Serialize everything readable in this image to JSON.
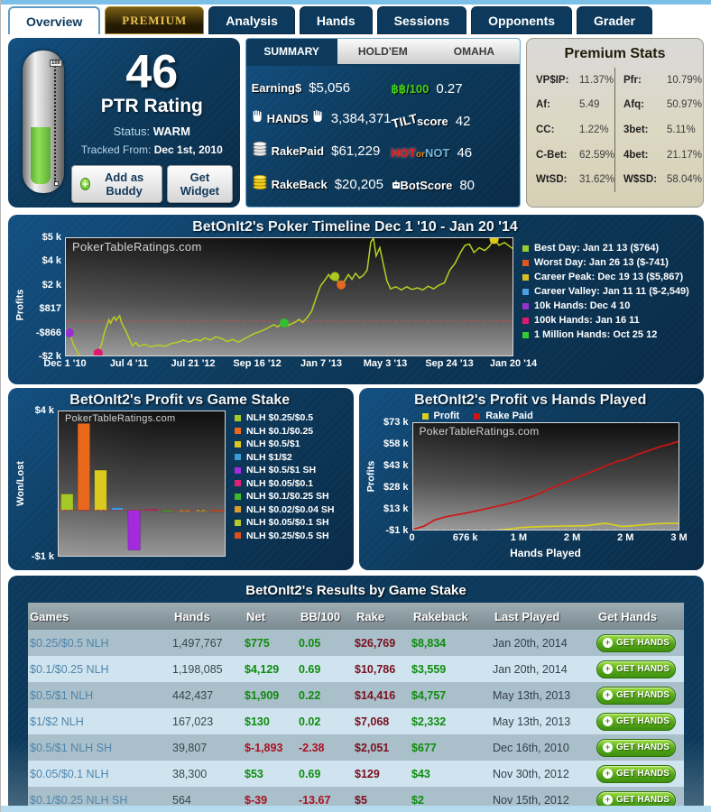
{
  "watermark": "PokerTableRatings.com",
  "colors": {
    "panel_navy": "#0d3a5c",
    "accent_lightblue": "#7cc0e8",
    "positive_green": "#0e8c0e",
    "negative_red": "#aa1122",
    "rake_red": "#7a0f1f"
  },
  "tabs": [
    {
      "label": "Overview",
      "active": true,
      "premium": false
    },
    {
      "label": "PREMIUM",
      "active": false,
      "premium": true
    },
    {
      "label": "Analysis",
      "active": false,
      "premium": false
    },
    {
      "label": "Hands",
      "active": false,
      "premium": false
    },
    {
      "label": "Sessions",
      "active": false,
      "premium": false
    },
    {
      "label": "Opponents",
      "active": false,
      "premium": false
    },
    {
      "label": "Grader",
      "active": false,
      "premium": false
    }
  ],
  "rating": {
    "value": "46",
    "label": "PTR Rating",
    "status_label": "Status:",
    "status_value": "WARM",
    "tracked_label": "Tracked From:",
    "tracked_value": "Dec 1st, 2010",
    "add_buddy_label": "Add as Buddy",
    "get_widget_label": "Get Widget",
    "thermo_top_label": "100",
    "thermo_fill_pct": 46
  },
  "summary": {
    "tabs": [
      {
        "label": "SUMMARY",
        "active": true
      },
      {
        "label": "HOLD'EM",
        "active": false
      },
      {
        "label": "OMAHA",
        "active": false
      }
    ],
    "left_stats": [
      {
        "id": "earnings",
        "label": "Earning$",
        "value": "$5,056",
        "icon": "none"
      },
      {
        "id": "hands",
        "label": "HANDS",
        "value": "3,384,371",
        "icon": "hands"
      },
      {
        "id": "rakepaid",
        "label": "RakePaid",
        "value": "$61,229",
        "icon": "coins-silver"
      },
      {
        "id": "rakeback",
        "label": "RakeBack",
        "value": "$20,205",
        "icon": "coins-gold"
      }
    ],
    "right_stats": [
      {
        "id": "bb100",
        "label": "฿฿/100",
        "value": "0.27"
      },
      {
        "id": "tiltscore",
        "label_a": "TILT",
        "label_b": "score",
        "value": "42"
      },
      {
        "id": "hotornot",
        "label_hot": "HOT",
        "label_or": "or",
        "label_not": "NOT",
        "value": "46"
      },
      {
        "id": "botscore",
        "label": "BotScore",
        "value": "80"
      }
    ]
  },
  "premium_stats": {
    "title": "Premium Stats",
    "left": [
      [
        "VP$IP:",
        "11.37%"
      ],
      [
        "Af:",
        "5.49"
      ],
      [
        "CC:",
        "1.22%"
      ],
      [
        "C-Bet:",
        "62.59%"
      ],
      [
        "WtSD:",
        "31.62%"
      ]
    ],
    "right": [
      [
        "Pfr:",
        "10.79%"
      ],
      [
        "Afq:",
        "50.97%"
      ],
      [
        "3bet:",
        "5.11%"
      ],
      [
        "4bet:",
        "21.17%"
      ],
      [
        "W$SD:",
        "58.04%"
      ]
    ]
  },
  "chart_data": [
    {
      "id": "timeline",
      "type": "line",
      "title": "BetOnIt2's Poker Timeline Dec 1 '10 - Jan 20 '14",
      "ylabel": "Profits",
      "line_color": "#b8d021",
      "zero_line_color": "#c05050",
      "yticks": [
        {
          "label": "$5 k",
          "v": 5000
        },
        {
          "label": "$4 k",
          "v": 4000
        },
        {
          "label": "$2 k",
          "v": 2000
        },
        {
          "label": "$817",
          "v": 817
        },
        {
          "label": "-$866",
          "v": -866
        },
        {
          "label": "-$2 k",
          "v": -2000
        }
      ],
      "xticks": [
        "Dec 1 '10",
        "Jul 4 '11",
        "Jul 21 '12",
        "Sep 16 '12",
        "Jan 7 '13",
        "May 3 '13",
        "Sep 24 '13",
        "Jan 20 '14"
      ],
      "series": [
        [
          0.0,
          -550
        ],
        [
          0.008,
          -820
        ],
        [
          0.018,
          -1450
        ],
        [
          0.03,
          -1900
        ],
        [
          0.04,
          -2100
        ],
        [
          0.05,
          -2250
        ],
        [
          0.058,
          -2300
        ],
        [
          0.066,
          -1950
        ],
        [
          0.072,
          -1800
        ],
        [
          0.08,
          -1350
        ],
        [
          0.086,
          -800
        ],
        [
          0.092,
          -250
        ],
        [
          0.096,
          100
        ],
        [
          0.1,
          -150
        ],
        [
          0.104,
          150
        ],
        [
          0.108,
          300
        ],
        [
          0.112,
          50
        ],
        [
          0.116,
          250
        ],
        [
          0.12,
          380
        ],
        [
          0.124,
          -80
        ],
        [
          0.128,
          -350
        ],
        [
          0.134,
          -700
        ],
        [
          0.14,
          -1050
        ],
        [
          0.148,
          -1450
        ],
        [
          0.156,
          -1300
        ],
        [
          0.164,
          -1480
        ],
        [
          0.175,
          -1380
        ],
        [
          0.19,
          -1500
        ],
        [
          0.205,
          -1420
        ],
        [
          0.22,
          -1480
        ],
        [
          0.235,
          -1350
        ],
        [
          0.25,
          -1280
        ],
        [
          0.262,
          -1180
        ],
        [
          0.275,
          -1280
        ],
        [
          0.288,
          -1150
        ],
        [
          0.3,
          -1220
        ],
        [
          0.31,
          -1080
        ],
        [
          0.322,
          -1180
        ],
        [
          0.335,
          -1020
        ],
        [
          0.348,
          -1120
        ],
        [
          0.36,
          -1250
        ],
        [
          0.372,
          -1150
        ],
        [
          0.385,
          -1280
        ],
        [
          0.398,
          -1120
        ],
        [
          0.41,
          -980
        ],
        [
          0.422,
          -850
        ],
        [
          0.434,
          -720
        ],
        [
          0.446,
          -550
        ],
        [
          0.456,
          -380
        ],
        [
          0.464,
          -250
        ],
        [
          0.472,
          -400
        ],
        [
          0.48,
          -200
        ],
        [
          0.487,
          -130
        ],
        [
          0.495,
          -320
        ],
        [
          0.503,
          -180
        ],
        [
          0.512,
          -60
        ],
        [
          0.52,
          130
        ],
        [
          0.528,
          -80
        ],
        [
          0.538,
          250
        ],
        [
          0.548,
          700
        ],
        [
          0.558,
          1400
        ],
        [
          0.568,
          2000
        ],
        [
          0.578,
          2500
        ],
        [
          0.586,
          2950
        ],
        [
          0.592,
          2600
        ],
        [
          0.6,
          2780
        ],
        [
          0.607,
          2350
        ],
        [
          0.614,
          2080
        ],
        [
          0.622,
          2450
        ],
        [
          0.63,
          2950
        ],
        [
          0.638,
          2550
        ],
        [
          0.646,
          3050
        ],
        [
          0.655,
          2650
        ],
        [
          0.664,
          2900
        ],
        [
          0.672,
          3350
        ],
        [
          0.68,
          4850
        ],
        [
          0.686,
          5000
        ],
        [
          0.692,
          4250
        ],
        [
          0.7,
          4600
        ],
        [
          0.708,
          3800
        ],
        [
          0.716,
          2400
        ],
        [
          0.724,
          1850
        ],
        [
          0.736,
          1950
        ],
        [
          0.748,
          1800
        ],
        [
          0.76,
          1950
        ],
        [
          0.772,
          1820
        ],
        [
          0.784,
          1900
        ],
        [
          0.796,
          1800
        ],
        [
          0.808,
          1980
        ],
        [
          0.82,
          1850
        ],
        [
          0.832,
          2050
        ],
        [
          0.844,
          2250
        ],
        [
          0.856,
          3300
        ],
        [
          0.868,
          3900
        ],
        [
          0.88,
          4400
        ],
        [
          0.89,
          4700
        ],
        [
          0.9,
          4750
        ],
        [
          0.91,
          4400
        ],
        [
          0.922,
          4600
        ],
        [
          0.934,
          4480
        ],
        [
          0.944,
          4650
        ],
        [
          0.955,
          4950
        ],
        [
          0.966,
          4700
        ],
        [
          0.978,
          4820
        ],
        [
          0.99,
          4650
        ],
        [
          1.0,
          4520
        ]
      ],
      "markers": [
        {
          "x": 0.008,
          "v": -820,
          "color": "#9b30d0"
        },
        {
          "x": 0.058,
          "v": -2300,
          "color": "#4aa0e0"
        },
        {
          "x": 0.072,
          "v": -1800,
          "color": "#e01870"
        },
        {
          "x": 0.487,
          "v": -130,
          "color": "#30c030"
        },
        {
          "x": 0.6,
          "v": 2780,
          "color": "#aac81e"
        },
        {
          "x": 0.614,
          "v": 2080,
          "color": "#e06820"
        },
        {
          "x": 0.955,
          "v": 4950,
          "color": "#e0c818"
        }
      ],
      "legend": [
        {
          "label": "Best Day: Jan 21 13 ($764)",
          "color": "#9acd32"
        },
        {
          "label": "Worst Day: Jan 26 13 ($-741)",
          "color": "#e2571e"
        },
        {
          "label": "Career Peak: Dec 19 13 ($5,867)",
          "color": "#d8c020"
        },
        {
          "label": "Career Valley: Jan 11 11 ($-2,549)",
          "color": "#4d9fe0"
        },
        {
          "label": "10k Hands: Dec 4 10",
          "color": "#9932cc"
        },
        {
          "label": "100k Hands: Jan 16 11",
          "color": "#e3196e"
        },
        {
          "label": "1 Million Hands: Oct 25 12",
          "color": "#32cd32"
        }
      ]
    },
    {
      "id": "stake",
      "type": "bar",
      "title": "BetOnIt2's Profit vs Game Stake",
      "ylabel": "Won/Lost",
      "ytick_top": "$4 k",
      "ytick_bottom": "-$1 k",
      "vmax": 4700,
      "vmin": -2250,
      "zero_line_color": "#c03030",
      "categories": [
        "NLH $0.25/$0.5",
        "NLH $0.1/$0.25",
        "NLH $0.5/$1",
        "NLH $1/$2",
        "NLH $0.5/$1 SH",
        "NLH $0.05/$0.1",
        "NLH $0.1/$0.25 SH",
        "NLH $0.02/$0.04 SH",
        "NLH $0.05/$0.1 SH",
        "NLH $0.25/$0.5 SH"
      ],
      "values": [
        775,
        4129,
        1909,
        130,
        -1893,
        53,
        -39,
        14,
        21,
        -12
      ],
      "colors": [
        "#a6c827",
        "#e8681c",
        "#ddc81e",
        "#3e9ad9",
        "#a42ae0",
        "#e0217a",
        "#3cba28",
        "#dd9c2e",
        "#b4c828",
        "#e0501e"
      ]
    },
    {
      "id": "hands",
      "type": "line",
      "title": "BetOnIt2's Profit vs Hands Played",
      "ylabel": "Profits",
      "xlabel": "Hands Played",
      "yticks": [
        {
          "label": "$73 k",
          "v": 73000
        },
        {
          "label": "$58 k",
          "v": 58000
        },
        {
          "label": "$43 k",
          "v": 43000
        },
        {
          "label": "$28 k",
          "v": 28000
        },
        {
          "label": "$13 k",
          "v": 13000
        },
        {
          "label": "-$1 k",
          "v": -1000
        }
      ],
      "xticks": [
        "0",
        "676 k",
        "1 M",
        "2 M",
        "2 M",
        "3 M"
      ],
      "series": [
        {
          "name": "Profit",
          "color": "#d8d020",
          "points": [
            [
              0,
              -200
            ],
            [
              0.05,
              -450
            ],
            [
              0.1,
              -650
            ],
            [
              0.15,
              -800
            ],
            [
              0.2,
              -850
            ],
            [
              0.25,
              -650
            ],
            [
              0.3,
              -350
            ],
            [
              0.35,
              400
            ],
            [
              0.4,
              1600
            ],
            [
              0.45,
              2100
            ],
            [
              0.5,
              2400
            ],
            [
              0.55,
              2600
            ],
            [
              0.6,
              2750
            ],
            [
              0.65,
              2950
            ],
            [
              0.7,
              4200
            ],
            [
              0.72,
              4500
            ],
            [
              0.75,
              3500
            ],
            [
              0.78,
              2400
            ],
            [
              0.82,
              2750
            ],
            [
              0.86,
              3500
            ],
            [
              0.9,
              4200
            ],
            [
              0.95,
              4450
            ],
            [
              1.0,
              4550
            ]
          ]
        },
        {
          "name": "Rake Paid",
          "color": "#d01414",
          "points": [
            [
              0,
              300
            ],
            [
              0.04,
              2600
            ],
            [
              0.08,
              6800
            ],
            [
              0.12,
              8900
            ],
            [
              0.16,
              10300
            ],
            [
              0.2,
              11600
            ],
            [
              0.25,
              13600
            ],
            [
              0.3,
              15600
            ],
            [
              0.35,
              17700
            ],
            [
              0.4,
              20100
            ],
            [
              0.45,
              23200
            ],
            [
              0.48,
              25600
            ],
            [
              0.52,
              28700
            ],
            [
              0.56,
              31700
            ],
            [
              0.6,
              34700
            ],
            [
              0.64,
              37700
            ],
            [
              0.68,
              40700
            ],
            [
              0.72,
              43700
            ],
            [
              0.76,
              46600
            ],
            [
              0.8,
              48600
            ],
            [
              0.84,
              51600
            ],
            [
              0.88,
              54100
            ],
            [
              0.92,
              56600
            ],
            [
              0.96,
              58700
            ],
            [
              1.0,
              60900
            ]
          ]
        }
      ]
    }
  ],
  "results_table": {
    "title": "BetOnIt2's Results by Game Stake",
    "columns": [
      "Games",
      "Hands",
      "Net",
      "BB/100",
      "Rake",
      "Rakeback",
      "Last Played",
      "Get Hands"
    ],
    "button_label": "GET HANDS",
    "rows": [
      {
        "game": "$0.25/$0.5 NLH",
        "hands": "1,497,767",
        "net": "$775",
        "bb100": "0.05",
        "rake": "$26,769",
        "rakeback": "$8,834",
        "last_played": "Jan 20th, 2014"
      },
      {
        "game": "$0.1/$0.25 NLH",
        "hands": "1,198,085",
        "net": "$4,129",
        "bb100": "0.69",
        "rake": "$10,786",
        "rakeback": "$3,559",
        "last_played": "Jan 20th, 2014"
      },
      {
        "game": "$0.5/$1 NLH",
        "hands": "442,437",
        "net": "$1,909",
        "bb100": "0.22",
        "rake": "$14,416",
        "rakeback": "$4,757",
        "last_played": "May 13th, 2013"
      },
      {
        "game": "$1/$2 NLH",
        "hands": "167,023",
        "net": "$130",
        "bb100": "0.02",
        "rake": "$7,068",
        "rakeback": "$2,332",
        "last_played": "May 13th, 2013"
      },
      {
        "game": "$0.5/$1 NLH SH",
        "hands": "39,807",
        "net": "$-1,893",
        "bb100": "-2.38",
        "rake": "$2,051",
        "rakeback": "$677",
        "last_played": "Dec 16th, 2010"
      },
      {
        "game": "$0.05/$0.1 NLH",
        "hands": "38,300",
        "net": "$53",
        "bb100": "0.69",
        "rake": "$129",
        "rakeback": "$43",
        "last_played": "Nov 30th, 2012"
      },
      {
        "game": "$0.1/$0.25 NLH SH",
        "hands": "564",
        "net": "$-39",
        "bb100": "-13.67",
        "rake": "$5",
        "rakeback": "$2",
        "last_played": "Nov 15th, 2012"
      }
    ]
  }
}
